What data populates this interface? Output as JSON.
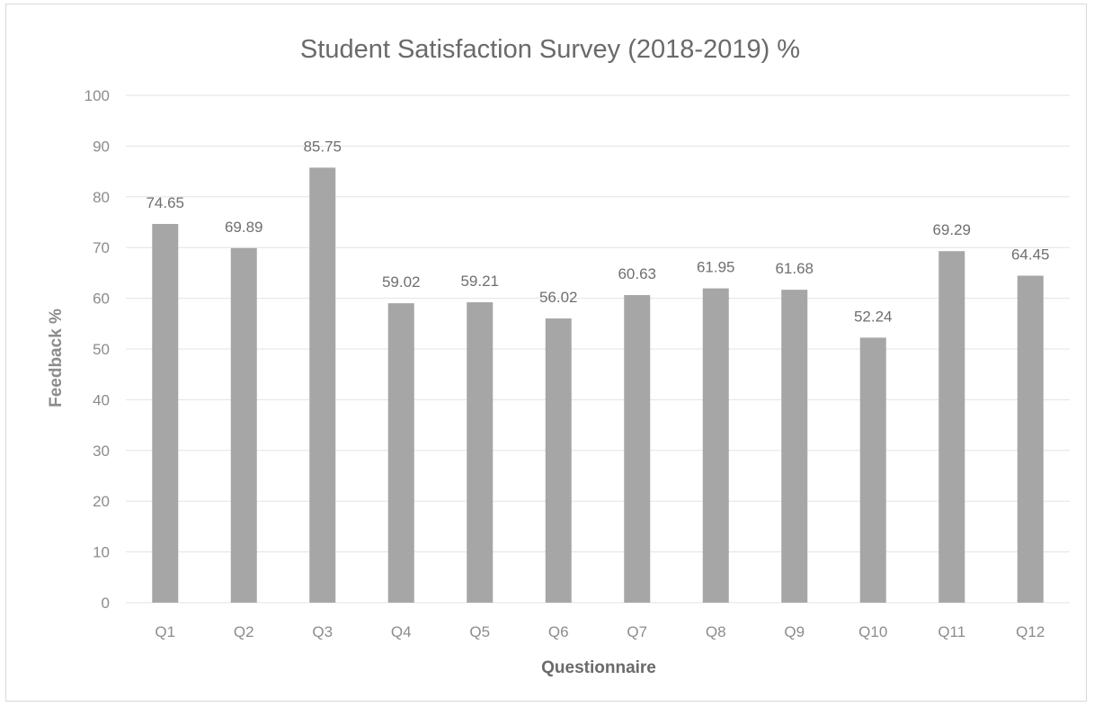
{
  "chart_data": {
    "type": "bar",
    "title": "Student Satisfaction Survey (2018-2019) %",
    "xlabel": "Questionnaire",
    "ylabel": "Feedback %",
    "categories": [
      "Q1",
      "Q2",
      "Q3",
      "Q4",
      "Q5",
      "Q6",
      "Q7",
      "Q8",
      "Q9",
      "Q10",
      "Q11",
      "Q12"
    ],
    "values": [
      74.65,
      69.89,
      85.75,
      59.02,
      59.21,
      56.02,
      60.63,
      61.95,
      61.68,
      52.24,
      69.29,
      64.45
    ],
    "data_labels": [
      "74.65",
      "69.89",
      "85.75",
      "59.02",
      "59.21",
      "56.02",
      "60.63",
      "61.95",
      "61.68",
      "52.24",
      "69.29",
      "64.45"
    ],
    "ylim": [
      0,
      100
    ],
    "yticks": [
      "0",
      "10",
      "20",
      "30",
      "40",
      "50",
      "60",
      "70",
      "80",
      "90",
      "100"
    ],
    "grid": true,
    "legend": "none",
    "colors": {
      "bar": "#a6a6a6",
      "gridline": "#e3e3e3",
      "text": "#8c8c8c"
    }
  }
}
